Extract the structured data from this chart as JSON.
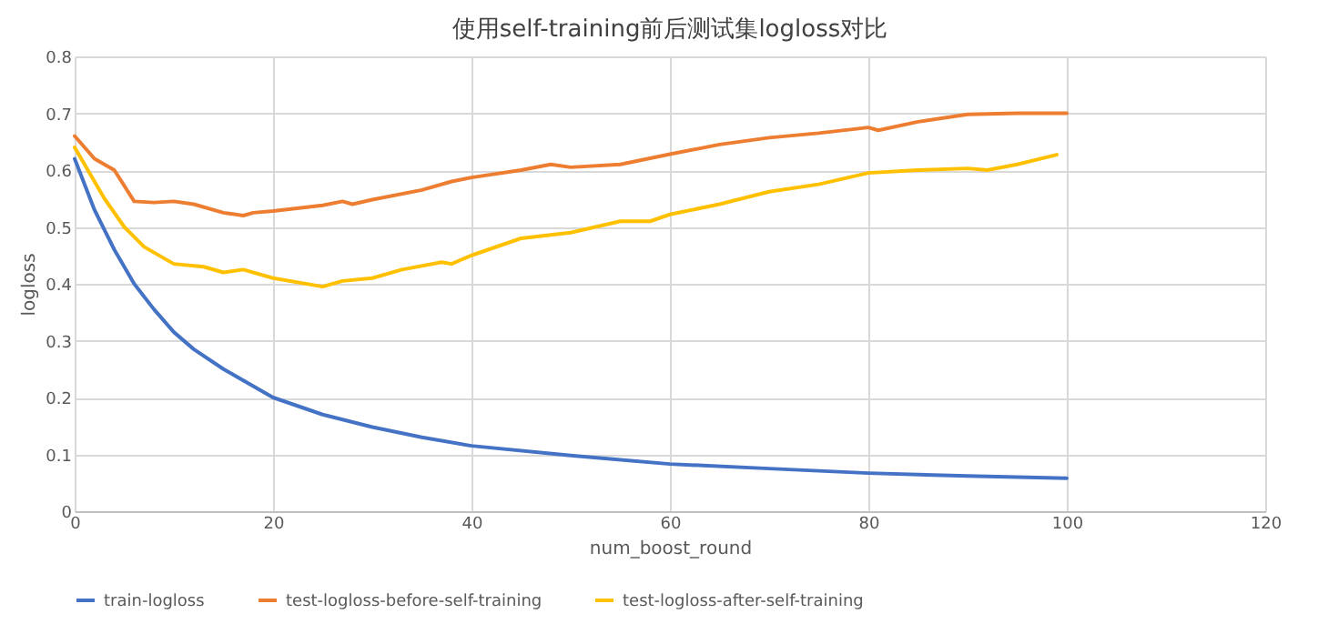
{
  "chart_data": {
    "type": "line",
    "title": "使用self-training前后测试集logloss对比",
    "xlabel": "num_boost_round",
    "ylabel": "logloss",
    "xlim": [
      0,
      120
    ],
    "xticks": [
      0,
      20,
      40,
      60,
      80,
      100,
      120
    ],
    "ylim": [
      0,
      0.8
    ],
    "yticks": [
      0,
      0.1,
      0.2,
      0.3,
      0.4,
      0.5,
      0.6,
      0.7,
      0.8
    ],
    "grid": true,
    "legend": "bottom",
    "marker": "none",
    "line_style": "solid",
    "series": [
      {
        "name": "train-logloss",
        "color": "#4472c4",
        "x": [
          0,
          2,
          4,
          6,
          8,
          10,
          12,
          15,
          20,
          25,
          30,
          35,
          40,
          50,
          60,
          70,
          80,
          90,
          100
        ],
        "values": [
          0.62,
          0.53,
          0.46,
          0.4,
          0.355,
          0.315,
          0.285,
          0.25,
          0.2,
          0.17,
          0.148,
          0.13,
          0.115,
          0.098,
          0.083,
          0.075,
          0.067,
          0.062,
          0.058
        ]
      },
      {
        "name": "test-logloss-before-self-training",
        "color": "#ed7d31",
        "x": [
          0,
          2,
          4,
          6,
          8,
          10,
          12,
          15,
          17,
          18,
          20,
          25,
          27,
          28,
          30,
          35,
          38,
          40,
          45,
          48,
          50,
          55,
          60,
          65,
          70,
          75,
          80,
          81,
          85,
          90,
          95,
          100
        ],
        "values": [
          0.66,
          0.62,
          0.6,
          0.545,
          0.543,
          0.545,
          0.54,
          0.525,
          0.52,
          0.525,
          0.528,
          0.538,
          0.545,
          0.54,
          0.548,
          0.565,
          0.58,
          0.587,
          0.6,
          0.61,
          0.605,
          0.61,
          0.628,
          0.645,
          0.657,
          0.665,
          0.675,
          0.67,
          0.685,
          0.698,
          0.7,
          0.7
        ]
      },
      {
        "name": "test-logloss-after-self-training",
        "color": "#ffc000",
        "x": [
          0,
          3,
          5,
          7,
          10,
          13,
          15,
          17,
          20,
          25,
          27,
          30,
          33,
          37,
          38,
          40,
          45,
          50,
          55,
          58,
          60,
          65,
          70,
          75,
          80,
          85,
          90,
          92,
          95,
          99
        ],
        "values": [
          0.64,
          0.55,
          0.5,
          0.465,
          0.435,
          0.43,
          0.42,
          0.425,
          0.41,
          0.395,
          0.405,
          0.41,
          0.425,
          0.438,
          0.435,
          0.45,
          0.48,
          0.49,
          0.51,
          0.51,
          0.522,
          0.54,
          0.562,
          0.575,
          0.595,
          0.6,
          0.603,
          0.6,
          0.61,
          0.627
        ]
      }
    ]
  }
}
